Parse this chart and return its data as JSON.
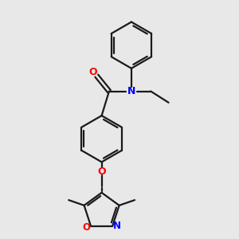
{
  "background_color": "#e8e8e8",
  "line_color": "#1a1a1a",
  "bond_width": 1.6,
  "figsize": [
    3.0,
    3.0
  ],
  "dpi": 100,
  "atom_colors": {
    "O": "#ff0000",
    "N": "#0000ff",
    "C": "#1a1a1a"
  }
}
